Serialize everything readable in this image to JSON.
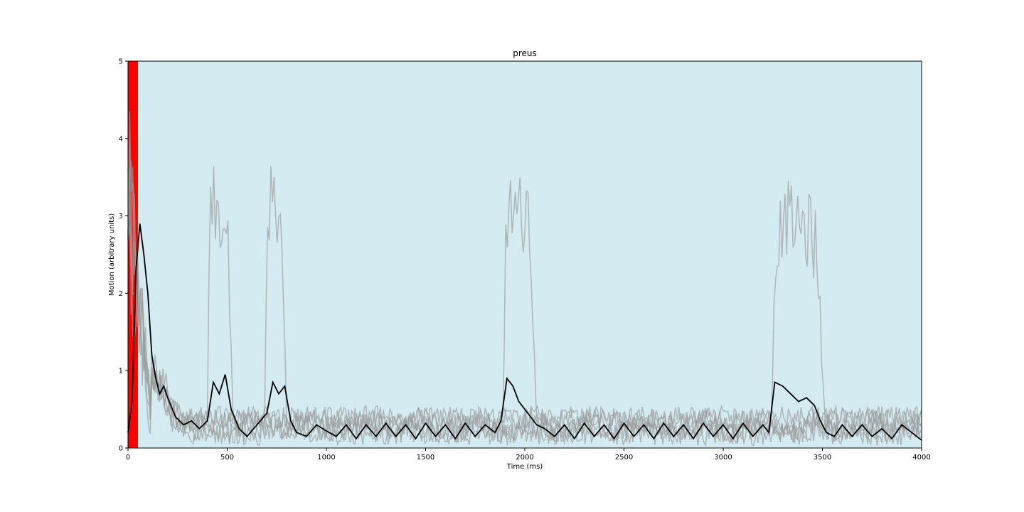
{
  "chart_data": {
    "type": "line",
    "title": "preus",
    "xlabel": "Time (ms)",
    "ylabel": "Motion (arbitrary units)",
    "xlim": [
      0,
      4000
    ],
    "ylim": [
      0,
      5
    ],
    "xticks": [
      0,
      500,
      1000,
      1500,
      2000,
      2500,
      3000,
      3500,
      4000
    ],
    "yticks": [
      0,
      1,
      2,
      3,
      4,
      5
    ],
    "grid": false,
    "legend": "none",
    "background_color": "#d4ebf1",
    "stimulus_band": {
      "x_start": 0,
      "x_end": 50,
      "color": "#ff0000"
    },
    "trial_color": "#999999",
    "mean_color": "#000000",
    "trial_bursts": [
      [
        [
          400,
          530,
          3.0
        ],
        [
          690,
          800,
          3.1
        ]
      ],
      [
        [
          1890,
          2060,
          2.9
        ]
      ],
      [
        [
          3240,
          3520,
          2.7
        ]
      ],
      [],
      [],
      []
    ],
    "series": [
      {
        "x": [
          0,
          20,
          40,
          60,
          80,
          100,
          120,
          140,
          160,
          180,
          200,
          240,
          280,
          320,
          360,
          400,
          430,
          460,
          490,
          520,
          560,
          600,
          650,
          700,
          730,
          760,
          790,
          820,
          850,
          900,
          950,
          1000,
          1050,
          1100,
          1150,
          1200,
          1250,
          1300,
          1350,
          1400,
          1450,
          1500,
          1550,
          1600,
          1650,
          1700,
          1750,
          1800,
          1850,
          1880,
          1910,
          1940,
          1970,
          2000,
          2030,
          2060,
          2100,
          2150,
          2200,
          2250,
          2300,
          2350,
          2400,
          2450,
          2500,
          2550,
          2600,
          2650,
          2700,
          2750,
          2800,
          2850,
          2900,
          2950,
          3000,
          3050,
          3100,
          3150,
          3200,
          3230,
          3260,
          3300,
          3340,
          3380,
          3420,
          3460,
          3490,
          3520,
          3560,
          3600,
          3650,
          3700,
          3750,
          3800,
          3850,
          3900,
          3950,
          4000
        ],
        "y": [
          0.2,
          0.6,
          2.3,
          2.9,
          2.5,
          2.0,
          1.2,
          0.9,
          0.7,
          0.8,
          0.65,
          0.4,
          0.3,
          0.35,
          0.25,
          0.35,
          0.85,
          0.7,
          0.95,
          0.5,
          0.25,
          0.15,
          0.3,
          0.45,
          0.85,
          0.7,
          0.8,
          0.35,
          0.2,
          0.15,
          0.3,
          0.22,
          0.15,
          0.3,
          0.12,
          0.3,
          0.15,
          0.32,
          0.15,
          0.3,
          0.12,
          0.32,
          0.15,
          0.3,
          0.12,
          0.32,
          0.15,
          0.3,
          0.2,
          0.35,
          0.9,
          0.8,
          0.6,
          0.5,
          0.4,
          0.3,
          0.25,
          0.15,
          0.3,
          0.12,
          0.32,
          0.15,
          0.3,
          0.12,
          0.32,
          0.15,
          0.3,
          0.12,
          0.32,
          0.15,
          0.3,
          0.12,
          0.32,
          0.15,
          0.3,
          0.12,
          0.32,
          0.15,
          0.3,
          0.2,
          0.85,
          0.8,
          0.7,
          0.6,
          0.65,
          0.55,
          0.35,
          0.2,
          0.15,
          0.3,
          0.15,
          0.3,
          0.15,
          0.25,
          0.12,
          0.3,
          0.2,
          0.1
        ]
      }
    ]
  }
}
